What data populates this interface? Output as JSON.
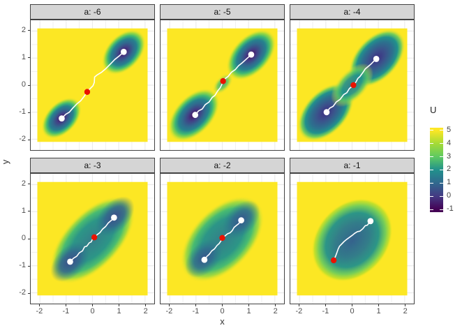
{
  "figure": {
    "background": "#ffffff"
  },
  "axes": {
    "x_ticks": [
      "-2",
      "-1",
      "0",
      "1",
      "2"
    ],
    "y_ticks": [
      "2",
      "1",
      "0",
      "-1",
      "-2"
    ],
    "x_tick_values": [
      -2,
      -1,
      0,
      1,
      2
    ],
    "y_tick_values": [
      2,
      1,
      0,
      -1,
      -2
    ],
    "grid_major": [
      -2,
      -1,
      0,
      1,
      2
    ],
    "grid_minor": [
      -1.5,
      -0.5,
      0.5,
      1.5
    ]
  },
  "colors": {
    "high_value_fill": "#FCE724",
    "grid": "#ebebeb",
    "path": "#ffffff",
    "white_dot": "#ffffff",
    "red_dot": "#ea1200"
  },
  "legend": {
    "title": "U",
    "labels": [
      "5",
      "4",
      "3",
      "2",
      "1",
      "0",
      "-1"
    ],
    "stops": [
      [
        0,
        "#FDE725"
      ],
      [
        0.031,
        "#FDE725"
      ],
      [
        0.1875,
        "#A5DB36"
      ],
      [
        0.344,
        "#5EC962"
      ],
      [
        0.5,
        "#21918C"
      ],
      [
        0.656,
        "#31688E"
      ],
      [
        0.8125,
        "#443983"
      ],
      [
        0.969,
        "#440154"
      ],
      [
        1,
        "#440154"
      ]
    ]
  },
  "chart_data": {
    "type": "heatmap",
    "title": "",
    "xlabel": "x",
    "ylabel": "y",
    "facet_variable": "a",
    "x_domain": [
      -2.1,
      2.1
    ],
    "y_domain": [
      -2.1,
      2.1
    ],
    "colorbar": {
      "title": "U",
      "ticks": [
        5,
        4,
        3,
        2,
        1,
        0,
        -1
      ],
      "limits": [
        -1,
        5
      ],
      "palette": "viridis"
    },
    "gradients": {
      "deep": [
        [
          0,
          "#46085c"
        ],
        [
          0.22,
          "#433e85"
        ],
        [
          0.42,
          "#31688e"
        ],
        [
          0.58,
          "#26828e"
        ],
        [
          0.72,
          "#3fb873"
        ],
        [
          0.84,
          "rgba(144,215,67,0.9)"
        ],
        [
          1,
          "rgba(253,231,37,0)"
        ]
      ],
      "neck_light": [
        [
          0,
          "rgba(33,145,140,0.85)"
        ],
        [
          0.5,
          "rgba(94,201,98,0.8)"
        ],
        [
          1,
          "rgba(253,231,37,0)"
        ]
      ],
      "core_navy_purple": [
        [
          0,
          "#3e2f82"
        ],
        [
          0.3,
          "#3b528b"
        ],
        [
          0.55,
          "#2c718e"
        ],
        [
          0.72,
          "#21918c"
        ],
        [
          0.85,
          "rgba(94,201,98,0.85)"
        ],
        [
          1,
          "rgba(253,231,37,0)"
        ]
      ],
      "neck_teal": [
        [
          0,
          "rgba(42,120,142,0.95)"
        ],
        [
          0.45,
          "rgba(33,145,140,0.9)"
        ],
        [
          0.7,
          "rgba(94,201,98,0.8)"
        ],
        [
          1,
          "rgba(253,231,37,0)"
        ]
      ],
      "body_teal": [
        [
          0,
          "rgba(42,120,142,0.95)"
        ],
        [
          0.5,
          "rgba(33,145,140,0.95)"
        ],
        [
          0.72,
          "rgba(53,183,121,0.9)"
        ],
        [
          0.86,
          "rgba(144,215,67,0.8)"
        ],
        [
          1,
          "rgba(253,231,37,0)"
        ]
      ],
      "core_navy": [
        [
          0,
          "#3d4e8a"
        ],
        [
          0.5,
          "rgba(51,99,141,0.85)"
        ],
        [
          1,
          "rgba(42,120,142,0)"
        ]
      ],
      "core_blue": [
        [
          0,
          "#37568c"
        ],
        [
          0.5,
          "rgba(49,104,142,0.8)"
        ],
        [
          1,
          "rgba(42,120,142,0)"
        ]
      ],
      "body_round": [
        [
          0,
          "rgba(49,104,142,0.95)"
        ],
        [
          0.4,
          "rgba(42,120,142,0.95)"
        ],
        [
          0.65,
          "rgba(33,145,140,0.95)"
        ],
        [
          0.82,
          "rgba(94,201,98,0.85)"
        ],
        [
          0.93,
          "rgba(181,222,43,0.75)"
        ],
        [
          1,
          "rgba(253,231,37,0)"
        ]
      ],
      "band_blue": [
        [
          0,
          "rgba(52,96,141,0.85)"
        ],
        [
          1,
          "rgba(42,120,142,0)"
        ]
      ]
    },
    "facets": [
      {
        "label": "a: -6",
        "a": -6,
        "white_dots": [
          [
            -1.17,
            -1.23
          ],
          [
            1.19,
            1.23
          ]
        ],
        "red_dot": [
          -0.2,
          -0.25
        ],
        "path": [
          [
            -1.17,
            -1.23
          ],
          [
            -1.02,
            -1.08
          ],
          [
            -0.88,
            -1.0
          ],
          [
            -0.75,
            -0.85
          ],
          [
            -0.58,
            -0.68
          ],
          [
            -0.45,
            -0.58
          ],
          [
            -0.32,
            -0.42
          ],
          [
            -0.2,
            -0.25
          ],
          [
            -0.1,
            -0.14
          ],
          [
            0.02,
            -0.02
          ],
          [
            0.07,
            0.1
          ],
          [
            0.08,
            0.3
          ],
          [
            0.18,
            0.38
          ],
          [
            0.35,
            0.48
          ],
          [
            0.52,
            0.62
          ],
          [
            0.68,
            0.78
          ],
          [
            0.85,
            0.95
          ],
          [
            1.02,
            1.08
          ],
          [
            1.19,
            1.23
          ]
        ],
        "wells": [
          {
            "cx": -1.18,
            "cy": -1.22,
            "rx": 0.92,
            "ry": 0.58,
            "angle": 45,
            "grad": "deep"
          },
          {
            "cx": 1.19,
            "cy": 1.22,
            "rx": 1.0,
            "ry": 0.65,
            "angle": 45,
            "grad": "deep"
          }
        ]
      },
      {
        "label": "a: -5",
        "a": -5,
        "white_dots": [
          [
            -1.03,
            -1.1
          ],
          [
            1.1,
            1.13
          ]
        ],
        "red_dot": [
          0.03,
          0.15
        ],
        "path": [
          [
            -1.03,
            -1.1
          ],
          [
            -0.9,
            -0.95
          ],
          [
            -0.76,
            -0.88
          ],
          [
            -0.65,
            -0.72
          ],
          [
            -0.5,
            -0.62
          ],
          [
            -0.38,
            -0.45
          ],
          [
            -0.28,
            -0.38
          ],
          [
            -0.18,
            -0.22
          ],
          [
            -0.08,
            -0.1
          ],
          [
            -0.02,
            0.02
          ],
          [
            0.03,
            0.15
          ],
          [
            0.12,
            0.25
          ],
          [
            0.22,
            0.32
          ],
          [
            0.35,
            0.48
          ],
          [
            0.5,
            0.58
          ],
          [
            0.62,
            0.72
          ],
          [
            0.75,
            0.82
          ],
          [
            0.9,
            0.95
          ],
          [
            1.1,
            1.13
          ]
        ],
        "wells": [
          {
            "cx": -1.08,
            "cy": -1.1,
            "rx": 1.2,
            "ry": 0.72,
            "angle": 45,
            "grad": "deep"
          },
          {
            "cx": 1.1,
            "cy": 1.12,
            "rx": 1.15,
            "ry": 0.7,
            "angle": 45,
            "grad": "deep"
          },
          {
            "cx": 0.02,
            "cy": 0.05,
            "rx": 0.5,
            "ry": 0.28,
            "angle": 45,
            "grad": "neck_light"
          }
        ]
      },
      {
        "label": "a: -4",
        "a": -4,
        "white_dots": [
          [
            -0.97,
            -1.0
          ],
          [
            0.92,
            0.97
          ]
        ],
        "red_dot": [
          0.05,
          0.0
        ],
        "path": [
          [
            -0.97,
            -1.0
          ],
          [
            -0.85,
            -0.85
          ],
          [
            -0.72,
            -0.78
          ],
          [
            -0.6,
            -0.62
          ],
          [
            -0.45,
            -0.52
          ],
          [
            -0.32,
            -0.35
          ],
          [
            -0.2,
            -0.28
          ],
          [
            -0.1,
            -0.12
          ],
          [
            0.0,
            -0.05
          ],
          [
            0.05,
            0.0
          ],
          [
            0.15,
            0.12
          ],
          [
            0.22,
            0.25
          ],
          [
            0.3,
            0.32
          ],
          [
            0.42,
            0.48
          ],
          [
            0.5,
            0.6
          ],
          [
            0.6,
            0.68
          ],
          [
            0.72,
            0.78
          ],
          [
            0.82,
            0.88
          ],
          [
            0.92,
            0.97
          ]
        ],
        "wells": [
          {
            "cx": -1.0,
            "cy": -1.0,
            "rx": 1.3,
            "ry": 0.8,
            "angle": 45,
            "grad": "core_navy_purple"
          },
          {
            "cx": 0.95,
            "cy": 1.0,
            "rx": 1.3,
            "ry": 0.8,
            "angle": 45,
            "grad": "core_navy_purple"
          },
          {
            "cx": 0.0,
            "cy": 0.0,
            "rx": 1.0,
            "ry": 0.55,
            "angle": 45,
            "grad": "neck_teal"
          }
        ]
      },
      {
        "label": "a: -3",
        "a": -3,
        "white_dots": [
          [
            -0.85,
            -0.85
          ],
          [
            0.82,
            0.78
          ]
        ],
        "red_dot": [
          0.07,
          0.05
        ],
        "path": [
          [
            -0.85,
            -0.85
          ],
          [
            -0.72,
            -0.72
          ],
          [
            -0.6,
            -0.65
          ],
          [
            -0.5,
            -0.52
          ],
          [
            -0.38,
            -0.45
          ],
          [
            -0.3,
            -0.3
          ],
          [
            -0.22,
            -0.28
          ],
          [
            -0.12,
            -0.15
          ],
          [
            -0.05,
            -0.12
          ],
          [
            0.0,
            -0.02
          ],
          [
            0.07,
            0.05
          ],
          [
            0.18,
            0.15
          ],
          [
            0.28,
            0.22
          ],
          [
            0.38,
            0.35
          ],
          [
            0.5,
            0.45
          ],
          [
            0.6,
            0.58
          ],
          [
            0.72,
            0.68
          ],
          [
            0.82,
            0.78
          ]
        ],
        "wells": [
          {
            "cx": 0.0,
            "cy": -0.05,
            "rx": 2.05,
            "ry": 1.05,
            "angle": 45,
            "grad": "body_teal"
          },
          {
            "cx": -0.85,
            "cy": -0.85,
            "rx": 0.9,
            "ry": 0.55,
            "angle": 45,
            "grad": "core_navy"
          },
          {
            "cx": 0.85,
            "cy": 0.82,
            "rx": 0.9,
            "ry": 0.55,
            "angle": 45,
            "grad": "core_navy"
          }
        ]
      },
      {
        "label": "a: -2",
        "a": -2,
        "white_dots": [
          [
            -0.68,
            -0.78
          ],
          [
            0.72,
            0.68
          ]
        ],
        "red_dot": [
          0.0,
          0.03
        ],
        "path": [
          [
            -0.68,
            -0.78
          ],
          [
            -0.58,
            -0.65
          ],
          [
            -0.5,
            -0.58
          ],
          [
            -0.4,
            -0.45
          ],
          [
            -0.3,
            -0.38
          ],
          [
            -0.2,
            -0.25
          ],
          [
            -0.12,
            -0.18
          ],
          [
            -0.05,
            -0.08
          ],
          [
            0.0,
            0.03
          ],
          [
            0.1,
            0.1
          ],
          [
            0.2,
            0.18
          ],
          [
            0.3,
            0.22
          ],
          [
            0.38,
            0.3
          ],
          [
            0.45,
            0.42
          ],
          [
            0.55,
            0.5
          ],
          [
            0.62,
            0.55
          ],
          [
            0.72,
            0.68
          ]
        ],
        "wells": [
          {
            "cx": 0.0,
            "cy": -0.02,
            "rx": 1.95,
            "ry": 1.15,
            "angle": 45,
            "grad": "body_teal"
          },
          {
            "cx": -0.7,
            "cy": -0.72,
            "rx": 0.85,
            "ry": 0.55,
            "angle": 45,
            "grad": "core_blue"
          },
          {
            "cx": 0.72,
            "cy": 0.7,
            "rx": 0.85,
            "ry": 0.55,
            "angle": 45,
            "grad": "core_blue"
          }
        ]
      },
      {
        "label": "a: -1",
        "a": -1,
        "white_dots": [
          [
            0.7,
            0.65
          ]
        ],
        "red_dot": [
          -0.7,
          -0.8
        ],
        "path": [
          [
            -0.7,
            -0.8
          ],
          [
            -0.63,
            -0.65
          ],
          [
            -0.58,
            -0.52
          ],
          [
            -0.53,
            -0.38
          ],
          [
            -0.48,
            -0.28
          ],
          [
            -0.4,
            -0.2
          ],
          [
            -0.3,
            -0.1
          ],
          [
            -0.2,
            -0.02
          ],
          [
            -0.1,
            0.05
          ],
          [
            0.0,
            0.12
          ],
          [
            0.1,
            0.2
          ],
          [
            0.2,
            0.26
          ],
          [
            0.3,
            0.28
          ],
          [
            0.4,
            0.36
          ],
          [
            0.5,
            0.48
          ],
          [
            0.58,
            0.5
          ],
          [
            0.7,
            0.65
          ]
        ],
        "wells": [
          {
            "cx": 0.0,
            "cy": -0.05,
            "rx": 1.72,
            "ry": 1.35,
            "angle": 45,
            "grad": "body_round"
          },
          {
            "cx": 0.0,
            "cy": -0.08,
            "rx": 1.15,
            "ry": 0.6,
            "angle": 45,
            "grad": "band_blue"
          }
        ]
      }
    ]
  }
}
